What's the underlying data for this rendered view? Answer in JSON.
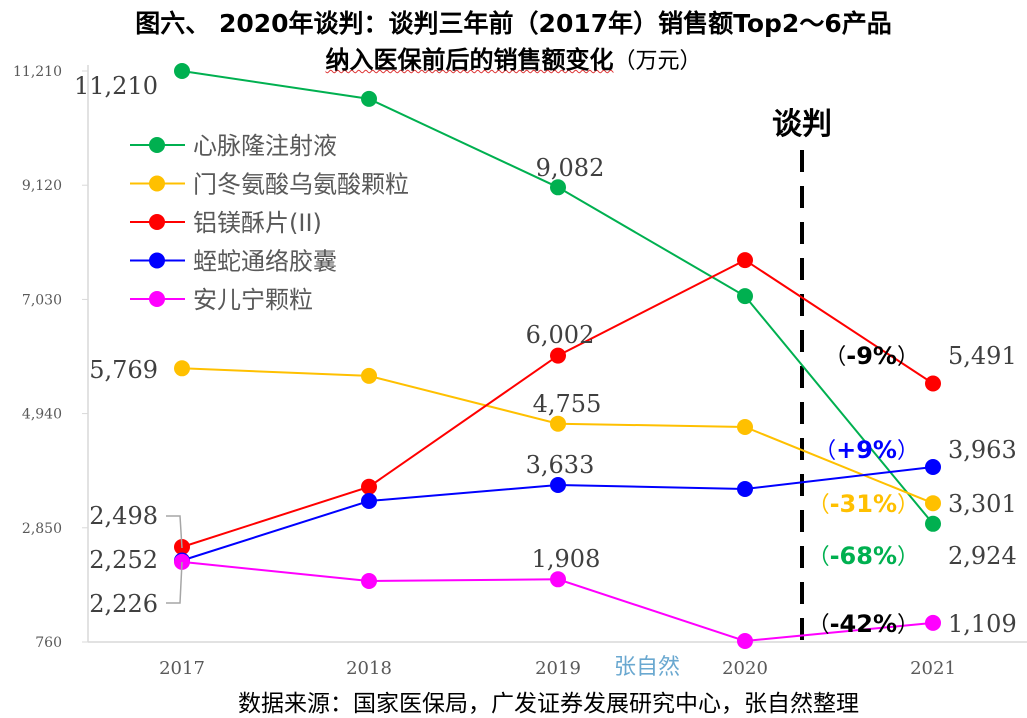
{
  "chart_data": {
    "type": "line",
    "title": "图六、 2020年谈判：谈判三年前（2017年）销售额Top2～6产品",
    "subtitle": "纳入医保前后的销售额变化",
    "unit": "（万元）",
    "xlabel": "",
    "ylabel": "",
    "categories": [
      "2017",
      "2018",
      "2019",
      "2020",
      "2021"
    ],
    "ylim": [
      760,
      11210
    ],
    "yticks": [
      "760",
      "2,850",
      "4,940",
      "7,030",
      "9,120",
      "11,210"
    ],
    "ytick_values": [
      760,
      2850,
      4940,
      7030,
      9120,
      11210
    ],
    "grid": false,
    "legend_position": "top-left",
    "series": [
      {
        "name": "心脉隆注射液",
        "color": "#00b050",
        "values": [
          11210,
          10700,
          9082,
          7090,
          2924
        ],
        "labels": [
          "11,210",
          "",
          "9,082",
          "",
          "2,924"
        ],
        "change": "-68%",
        "label_color": "#00b050"
      },
      {
        "name": "门冬氨酸乌氨酸颗粒",
        "color": "#ffc000",
        "values": [
          5769,
          5630,
          4755,
          4695,
          3301
        ],
        "labels": [
          "5,769",
          "",
          "4,755",
          "",
          "3,301"
        ],
        "change": "-31%",
        "label_color": "#ffc000"
      },
      {
        "name": "铝镁酥片(II)",
        "color": "#ff0000",
        "values": [
          2498,
          3600,
          6002,
          7750,
          5491
        ],
        "labels": [
          "2,498",
          "",
          "6,002",
          "",
          "5,491"
        ],
        "change": "-9%",
        "label_color": "#000000"
      },
      {
        "name": "蛭蛇通络胶囊",
        "color": "#0000ff",
        "values": [
          2252,
          3340,
          3633,
          3560,
          3963
        ],
        "labels": [
          "2,252",
          "",
          "3,633",
          "",
          "3,963"
        ],
        "change": "+9%",
        "label_color": "#0000ff"
      },
      {
        "name": "安儿宁颗粒",
        "color": "#ff00ff",
        "values": [
          2226,
          1876,
          1908,
          778,
          1109
        ],
        "labels": [
          "2,226",
          "",
          "1,908",
          "",
          "1,109"
        ],
        "change": "-42%",
        "label_color": "#000000"
      }
    ],
    "annotations": {
      "negotiation_label": "谈判",
      "negotiation_between": [
        "2020",
        "2021"
      ],
      "watermark": "张自然"
    }
  },
  "title_line1": "图六、 2020年谈判：谈判三年前（2017年）销售额Top2～6产品",
  "title_line2_main": "纳入医保前后的销售额变化",
  "title_line2_unit": "（万元）",
  "source": "数据来源：国家医保局，广发证券发展研究中心，张自然整理"
}
